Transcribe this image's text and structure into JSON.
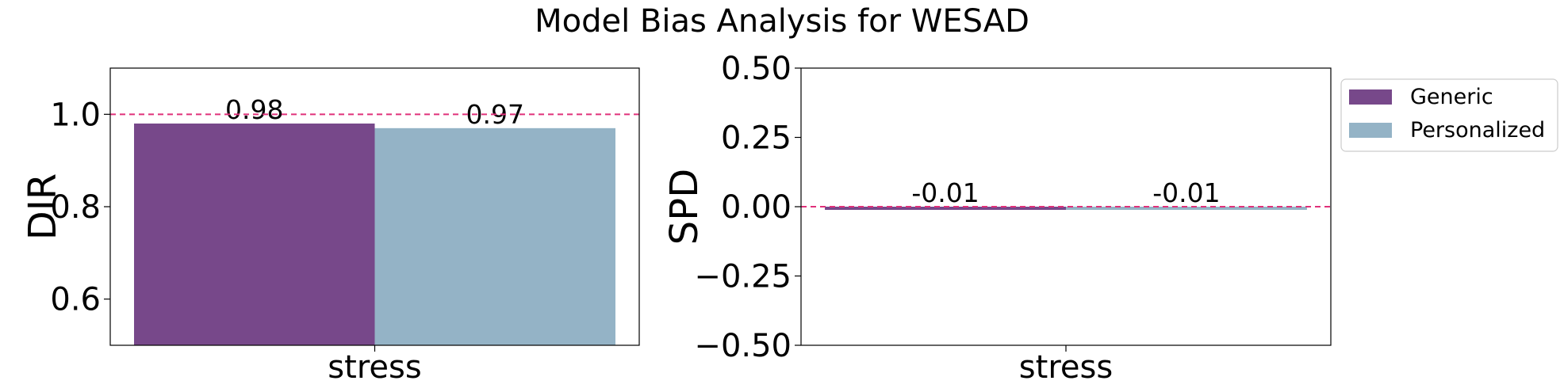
{
  "title": "Model Bias Analysis for WESAD",
  "colors": {
    "generic": "#77488a",
    "personalized": "#94b3c6",
    "reference_line": "#e0317a"
  },
  "legend": {
    "placement": "outside upper right",
    "items": [
      "Generic",
      "Personalized"
    ]
  },
  "chart_data": [
    {
      "type": "bar",
      "ylabel": "DIR",
      "xlabel": "",
      "categories": [
        "stress"
      ],
      "ylim": [
        0.5,
        1.1
      ],
      "yticks": [
        0.6,
        0.8,
        1.0
      ],
      "ytick_labels": [
        "0.6",
        "0.8",
        "1.0"
      ],
      "reference_line": 1.0,
      "series": [
        {
          "name": "Generic",
          "values": [
            0.98
          ],
          "labels": [
            "0.98"
          ]
        },
        {
          "name": "Personalized",
          "values": [
            0.97
          ],
          "labels": [
            "0.97"
          ]
        }
      ]
    },
    {
      "type": "bar",
      "ylabel": "SPD",
      "xlabel": "",
      "categories": [
        "stress"
      ],
      "ylim": [
        -0.5,
        0.5
      ],
      "yticks": [
        -0.5,
        -0.25,
        0.0,
        0.25,
        0.5
      ],
      "ytick_labels": [
        "−0.50",
        "−0.25",
        "0.00",
        "0.25",
        "0.50"
      ],
      "reference_line": 0.0,
      "series": [
        {
          "name": "Generic",
          "values": [
            -0.01
          ],
          "labels": [
            "-0.01"
          ]
        },
        {
          "name": "Personalized",
          "values": [
            -0.01
          ],
          "labels": [
            "-0.01"
          ]
        }
      ]
    }
  ]
}
